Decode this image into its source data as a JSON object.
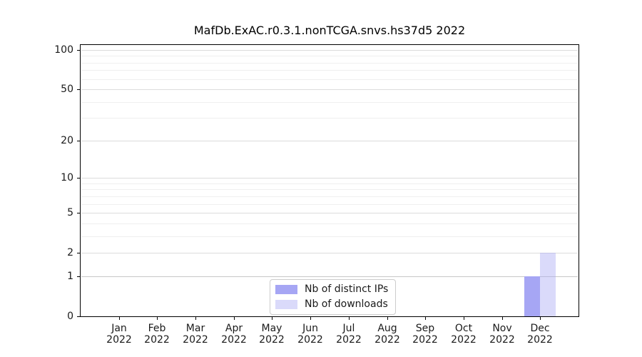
{
  "chart_data": {
    "type": "bar",
    "title": "MafDb.ExAC.r0.3.1.nonTCGA.snvs.hs37d5 2022",
    "x_categories_line1": [
      "Jan",
      "Feb",
      "Mar",
      "Apr",
      "May",
      "Jun",
      "Jul",
      "Aug",
      "Sep",
      "Oct",
      "Nov",
      "Dec"
    ],
    "x_categories_line2": [
      "2022",
      "2022",
      "2022",
      "2022",
      "2022",
      "2022",
      "2022",
      "2022",
      "2022",
      "2022",
      "2022",
      "2022"
    ],
    "series": [
      {
        "name": "Nb of distinct IPs",
        "color": "#a6a6f4",
        "opacity": 1,
        "values": [
          0,
          0,
          0,
          0,
          0,
          0,
          0,
          0,
          0,
          0,
          0,
          1
        ]
      },
      {
        "name": "Nb of downloads",
        "color": "#a6a6f4",
        "opacity": 0.42,
        "values": [
          0,
          0,
          0,
          0,
          0,
          0,
          0,
          0,
          0,
          0,
          0,
          2
        ]
      }
    ],
    "yscale": "log1p",
    "ylim": [
      0,
      108
    ],
    "y_major_ticks": [
      0,
      1,
      2,
      5,
      10,
      20,
      50,
      100
    ],
    "y_minor_gridlines": [
      3,
      4,
      6,
      7,
      8,
      9,
      30,
      40,
      60,
      70,
      80,
      90
    ],
    "grid": "on",
    "legend_position": "lower-center",
    "colors": {
      "axis": "#000000",
      "text": "#1a1a1a",
      "grid_major": "#dcdcdc",
      "grid_minor": "#efefef",
      "grid_unit_line": "#c8c8c8",
      "legend_border": "#cccccc",
      "background": "#ffffff"
    }
  }
}
